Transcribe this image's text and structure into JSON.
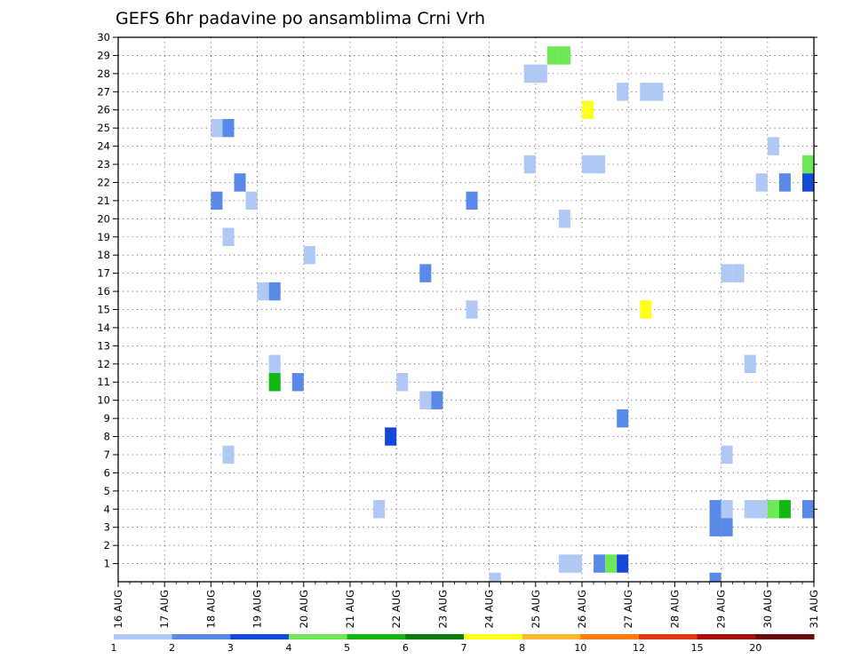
{
  "chart_data": {
    "type": "heatmap",
    "title": "GEFS 6hr padavine po ansamblima Crni Vrh",
    "x_tick_labels": [
      "16 AUG",
      "17 AUG",
      "18 AUG",
      "19 AUG",
      "20 AUG",
      "21 AUG",
      "22 AUG",
      "23 AUG",
      "24 AUG",
      "25 AUG",
      "26 AUG",
      "27 AUG",
      "28 AUG",
      "29 AUG",
      "30 AUG",
      "31 AUG"
    ],
    "y_tick_labels": [
      "1",
      "2",
      "3",
      "4",
      "5",
      "6",
      "7",
      "8",
      "9",
      "10",
      "11",
      "12",
      "13",
      "14",
      "15",
      "16",
      "17",
      "18",
      "19",
      "20",
      "21",
      "22",
      "23",
      "24",
      "25",
      "26",
      "27",
      "28",
      "29",
      "30"
    ],
    "x_range_days": [
      0,
      15
    ],
    "y_range_members": [
      0,
      30
    ],
    "grid": true,
    "legend_position": "bottom",
    "legend": {
      "colors": [
        "#b0c8f4",
        "#5a8ae8",
        "#1448d8",
        "#6ee858",
        "#10b810",
        "#0a7a0a",
        "#ffff1c",
        "#ffb833",
        "#ff7c10",
        "#e03810",
        "#a81010",
        "#6a0a0a"
      ],
      "labels": [
        "1",
        "2",
        "3",
        "4",
        "5",
        "6",
        "7",
        "8",
        "10",
        "12",
        "15",
        "20"
      ]
    },
    "cells": [
      {
        "day": 2.0,
        "member": 25,
        "level": 1
      },
      {
        "day": 2.25,
        "member": 25,
        "level": 2
      },
      {
        "day": 2.5,
        "member": 22,
        "level": 2
      },
      {
        "day": 2.0,
        "member": 21,
        "level": 2
      },
      {
        "day": 2.75,
        "member": 21,
        "level": 1
      },
      {
        "day": 2.25,
        "member": 19,
        "level": 1
      },
      {
        "day": 3.0,
        "member": 16,
        "level": 1
      },
      {
        "day": 3.25,
        "member": 16,
        "level": 2
      },
      {
        "day": 3.25,
        "member": 12,
        "level": 1
      },
      {
        "day": 3.25,
        "member": 11,
        "level": 5
      },
      {
        "day": 3.75,
        "member": 11,
        "level": 2
      },
      {
        "day": 2.25,
        "member": 7,
        "level": 1
      },
      {
        "day": 4.0,
        "member": 18,
        "level": 1
      },
      {
        "day": 5.5,
        "member": 4,
        "level": 1
      },
      {
        "day": 5.75,
        "member": 8,
        "level": 3
      },
      {
        "day": 6.0,
        "member": 11,
        "level": 1
      },
      {
        "day": 6.5,
        "member": 10,
        "level": 1
      },
      {
        "day": 6.75,
        "member": 10,
        "level": 2
      },
      {
        "day": 6.5,
        "member": 17,
        "level": 2
      },
      {
        "day": 7.5,
        "member": 21,
        "level": 2
      },
      {
        "day": 7.5,
        "member": 15,
        "level": 1
      },
      {
        "day": 8.0,
        "member": 0,
        "level": 1
      },
      {
        "day": 8.75,
        "member": 28,
        "level": 1
      },
      {
        "day": 9.0,
        "member": 28,
        "level": 1
      },
      {
        "day": 8.75,
        "member": 23,
        "level": 1
      },
      {
        "day": 9.25,
        "member": 29,
        "level": 4
      },
      {
        "day": 9.5,
        "member": 29,
        "level": 4
      },
      {
        "day": 9.5,
        "member": 20,
        "level": 1
      },
      {
        "day": 9.5,
        "member": 1,
        "level": 1
      },
      {
        "day": 9.75,
        "member": 1,
        "level": 1
      },
      {
        "day": 10.0,
        "member": 26,
        "level": 7
      },
      {
        "day": 10.0,
        "member": 23,
        "level": 1
      },
      {
        "day": 10.25,
        "member": 23,
        "level": 1
      },
      {
        "day": 10.25,
        "member": 1,
        "level": 2
      },
      {
        "day": 10.5,
        "member": 1,
        "level": 4
      },
      {
        "day": 10.75,
        "member": 1,
        "level": 3
      },
      {
        "day": 10.75,
        "member": 27,
        "level": 1
      },
      {
        "day": 11.25,
        "member": 27,
        "level": 1
      },
      {
        "day": 11.5,
        "member": 27,
        "level": 1
      },
      {
        "day": 10.75,
        "member": 9,
        "level": 2
      },
      {
        "day": 11.25,
        "member": 15,
        "level": 7
      },
      {
        "day": 13.0,
        "member": 17,
        "level": 1
      },
      {
        "day": 13.25,
        "member": 17,
        "level": 1
      },
      {
        "day": 13.5,
        "member": 12,
        "level": 1
      },
      {
        "day": 13.0,
        "member": 7,
        "level": 1
      },
      {
        "day": 12.75,
        "member": 4,
        "level": 2
      },
      {
        "day": 13.0,
        "member": 4,
        "level": 1
      },
      {
        "day": 12.75,
        "member": 3,
        "level": 2
      },
      {
        "day": 13.0,
        "member": 3,
        "level": 2
      },
      {
        "day": 12.75,
        "member": 0,
        "level": 2
      },
      {
        "day": 13.5,
        "member": 4,
        "level": 1
      },
      {
        "day": 13.75,
        "member": 4,
        "level": 1
      },
      {
        "day": 14.0,
        "member": 4,
        "level": 4
      },
      {
        "day": 14.25,
        "member": 4,
        "level": 5
      },
      {
        "day": 14.75,
        "member": 4,
        "level": 2
      },
      {
        "day": 13.75,
        "member": 22,
        "level": 1
      },
      {
        "day": 14.0,
        "member": 24,
        "level": 1
      },
      {
        "day": 14.25,
        "member": 22,
        "level": 2
      },
      {
        "day": 14.75,
        "member": 23,
        "level": 4
      },
      {
        "day": 14.75,
        "member": 22,
        "level": 3
      }
    ]
  }
}
